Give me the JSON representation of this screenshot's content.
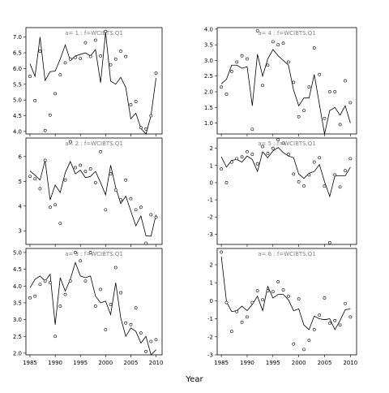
{
  "figure": {
    "xlabel": "Year"
  },
  "chart_data": [
    {
      "type": "line",
      "title": "a= 1 : f=WCIBTS.Q1",
      "years": [
        1985,
        1986,
        1987,
        1988,
        1989,
        1990,
        1991,
        1992,
        1993,
        1994,
        1995,
        1996,
        1997,
        1998,
        1999,
        2000,
        2001,
        2002,
        2003,
        2004,
        2005,
        2006,
        2007,
        2008,
        2009,
        2010
      ],
      "points": [
        5.75,
        4.98,
        6.55,
        4.03,
        4.52,
        5.2,
        5.8,
        6.18,
        6.3,
        6.35,
        6.32,
        6.82,
        6.38,
        6.9,
        6.4,
        7.18,
        6.12,
        6.3,
        6.55,
        6.38,
        4.85,
        4.95,
        4.12,
        4.08,
        4.5,
        5.85
      ],
      "line": [
        6.15,
        5.75,
        7.0,
        5.62,
        5.9,
        5.92,
        6.3,
        6.75,
        6.25,
        6.4,
        6.45,
        6.5,
        6.4,
        6.6,
        5.55,
        7.15,
        5.6,
        5.5,
        5.72,
        5.4,
        4.4,
        4.58,
        4.1,
        3.92,
        4.5,
        5.7
      ],
      "ylim": [
        3.92,
        7.3
      ],
      "yticks": [
        4.0,
        4.5,
        5.0,
        5.5,
        6.0,
        6.5,
        7.0
      ],
      "ytick_labels": [
        "4.0",
        "4.5",
        "5.0",
        "5.5",
        "6.0",
        "6.5",
        "7.0"
      ]
    },
    {
      "type": "line",
      "title": "a= 2 : f=WCIBTS.Q1",
      "years": [
        1985,
        1986,
        1987,
        1988,
        1989,
        1990,
        1991,
        1992,
        1993,
        1994,
        1995,
        1996,
        1997,
        1998,
        1999,
        2000,
        2001,
        2002,
        2003,
        2004,
        2005,
        2006,
        2007,
        2008,
        2009,
        2010
      ],
      "points": [
        5.2,
        5.1,
        4.7,
        5.85,
        3.95,
        4.05,
        3.3,
        5.05,
        6.6,
        5.55,
        5.65,
        5.4,
        5.5,
        4.95,
        6.2,
        3.85,
        5.3,
        4.65,
        4.25,
        5.05,
        4.3,
        3.85,
        3.95,
        2.5,
        3.65,
        3.55
      ],
      "line": [
        5.42,
        5.25,
        5.05,
        5.85,
        4.25,
        4.85,
        4.55,
        5.35,
        5.8,
        5.3,
        5.45,
        5.15,
        5.2,
        5.4,
        4.95,
        4.45,
        5.65,
        4.75,
        4.1,
        4.4,
        3.8,
        3.2,
        3.6,
        2.8,
        2.78,
        3.65
      ],
      "ylim": [
        2.45,
        6.75
      ],
      "yticks": [
        3,
        4,
        5,
        6
      ],
      "ytick_labels": [
        "3",
        "4",
        "5",
        "6"
      ]
    },
    {
      "type": "line",
      "title": "a= 3 : f=WCIBTS.Q1",
      "years": [
        1985,
        1986,
        1987,
        1988,
        1989,
        1990,
        1991,
        1992,
        1993,
        1994,
        1995,
        1996,
        1997,
        1998,
        1999,
        2000,
        2001,
        2002,
        2003,
        2004,
        2005,
        2006,
        2007,
        2008,
        2009,
        2010
      ],
      "points": [
        3.65,
        3.7,
        4.05,
        4.15,
        4.1,
        2.5,
        3.4,
        3.75,
        4.15,
        5.0,
        4.75,
        4.15,
        5.0,
        3.4,
        3.9,
        2.7,
        3.45,
        4.55,
        3.8,
        2.9,
        2.85,
        3.35,
        2.6,
        2.05,
        2.35,
        2.4
      ],
      "line": [
        3.95,
        4.2,
        4.3,
        4.15,
        4.35,
        2.85,
        4.25,
        3.85,
        4.2,
        4.7,
        4.3,
        4.25,
        4.3,
        3.7,
        3.5,
        3.55,
        3.15,
        4.1,
        3.05,
        2.5,
        2.75,
        2.65,
        2.3,
        2.5,
        1.95,
        2.1
      ],
      "ylim": [
        1.95,
        5.12
      ],
      "yticks": [
        2.0,
        2.5,
        3.0,
        3.5,
        4.0,
        4.5,
        5.0
      ],
      "ytick_labels": [
        "2.0",
        "2.5",
        "3.0",
        "3.5",
        "4.0",
        "4.5",
        "5.0"
      ]
    },
    {
      "type": "line",
      "title": "a= 4 : f=WCIBTS.Q1",
      "years": [
        1985,
        1986,
        1987,
        1988,
        1989,
        1990,
        1991,
        1992,
        1993,
        1994,
        1995,
        1996,
        1997,
        1998,
        1999,
        2000,
        2001,
        2002,
        2003,
        2004,
        2005,
        2006,
        2007,
        2008,
        2009,
        2010
      ],
      "points": [
        2.15,
        1.92,
        2.65,
        2.95,
        3.15,
        3.05,
        0.8,
        3.95,
        2.2,
        2.85,
        3.6,
        3.5,
        3.55,
        2.95,
        2.3,
        1.2,
        1.4,
        2.15,
        3.4,
        2.55,
        1.15,
        2.0,
        2.0,
        0.95,
        2.35,
        1.65
      ],
      "line": [
        2.25,
        2.4,
        2.85,
        2.85,
        2.75,
        2.8,
        1.55,
        3.2,
        2.5,
        3.05,
        3.35,
        3.15,
        3.0,
        2.85,
        2.05,
        1.55,
        1.8,
        1.8,
        2.55,
        1.6,
        0.65,
        1.4,
        1.5,
        1.25,
        1.55,
        1.0
      ],
      "ylim": [
        0.65,
        4.05
      ],
      "yticks": [
        1.0,
        1.5,
        2.0,
        2.5,
        3.0,
        3.5,
        4.0
      ],
      "ytick_labels": [
        "1.0",
        "1.5",
        "2.0",
        "2.5",
        "3.0",
        "3.5",
        "4.0"
      ]
    },
    {
      "type": "line",
      "title": "a= 5 : f=WCIBTS.Q1",
      "years": [
        1985,
        1986,
        1987,
        1988,
        1989,
        1990,
        1991,
        1992,
        1993,
        1994,
        1995,
        1996,
        1997,
        1998,
        1999,
        2000,
        2001,
        2002,
        2003,
        2004,
        2005,
        2006,
        2007,
        2008,
        2009,
        2010
      ],
      "points": [
        0.8,
        0.0,
        1.2,
        1.4,
        1.5,
        1.8,
        1.65,
        1.1,
        2.1,
        1.7,
        2.0,
        2.5,
        2.3,
        1.65,
        0.5,
        0.05,
        -0.2,
        0.45,
        1.2,
        1.45,
        -0.2,
        -3.5,
        0.45,
        -0.25,
        0.7,
        1.4
      ],
      "line": [
        1.5,
        0.9,
        1.3,
        1.35,
        1.2,
        1.55,
        1.35,
        0.65,
        1.8,
        1.45,
        1.85,
        2.05,
        1.75,
        1.55,
        1.45,
        0.5,
        0.25,
        0.55,
        0.65,
        1.05,
        0.05,
        -0.8,
        0.4,
        0.4,
        0.4,
        0.9
      ],
      "ylim": [
        -3.6,
        2.6
      ],
      "yticks": [
        -3,
        -2,
        -1,
        0,
        1,
        2
      ],
      "ytick_labels": [
        "-3",
        "-2",
        "-1",
        "0",
        "1",
        "2"
      ]
    },
    {
      "type": "line",
      "title": "a= 6 : f=WCIBTS.Q1",
      "years": [
        1985,
        1986,
        1987,
        1988,
        1989,
        1990,
        1991,
        1992,
        1993,
        1994,
        1995,
        1996,
        1997,
        1998,
        1999,
        2000,
        2001,
        2002,
        2003,
        2004,
        2005,
        2006,
        2007,
        2008,
        2009,
        2010
      ],
      "points": [
        2.7,
        -0.1,
        -1.7,
        -0.6,
        -1.2,
        -0.9,
        -0.1,
        0.55,
        0.05,
        0.55,
        0.5,
        1.05,
        0.6,
        0.25,
        -2.4,
        0.1,
        -2.7,
        -2.2,
        -1.6,
        -0.8,
        0.15,
        -1.25,
        -1.1,
        -1.35,
        -0.15,
        -0.9
      ],
      "line": [
        2.45,
        -0.05,
        -0.6,
        -0.55,
        -0.3,
        -0.55,
        -0.2,
        0.25,
        -0.55,
        0.8,
        0.15,
        0.35,
        0.35,
        0.05,
        -0.55,
        -0.45,
        -1.35,
        -1.6,
        -0.85,
        -1.0,
        -1.05,
        -1.0,
        -1.6,
        -1.1,
        -0.5,
        -0.45
      ],
      "ylim": [
        -3.0,
        2.9
      ],
      "yticks": [
        -3,
        -2,
        -1,
        0,
        1,
        2
      ],
      "ytick_labels": [
        "-3",
        "-2",
        "-1",
        "0",
        "1",
        "2"
      ]
    }
  ],
  "xaxis": {
    "ticks": [
      1985,
      1990,
      1995,
      2000,
      2005,
      2010
    ],
    "tick_labels": [
      "1985",
      "1990",
      "1995",
      "2000",
      "2005",
      "2010"
    ],
    "xlim": [
      1984.2,
      2011.2
    ]
  }
}
